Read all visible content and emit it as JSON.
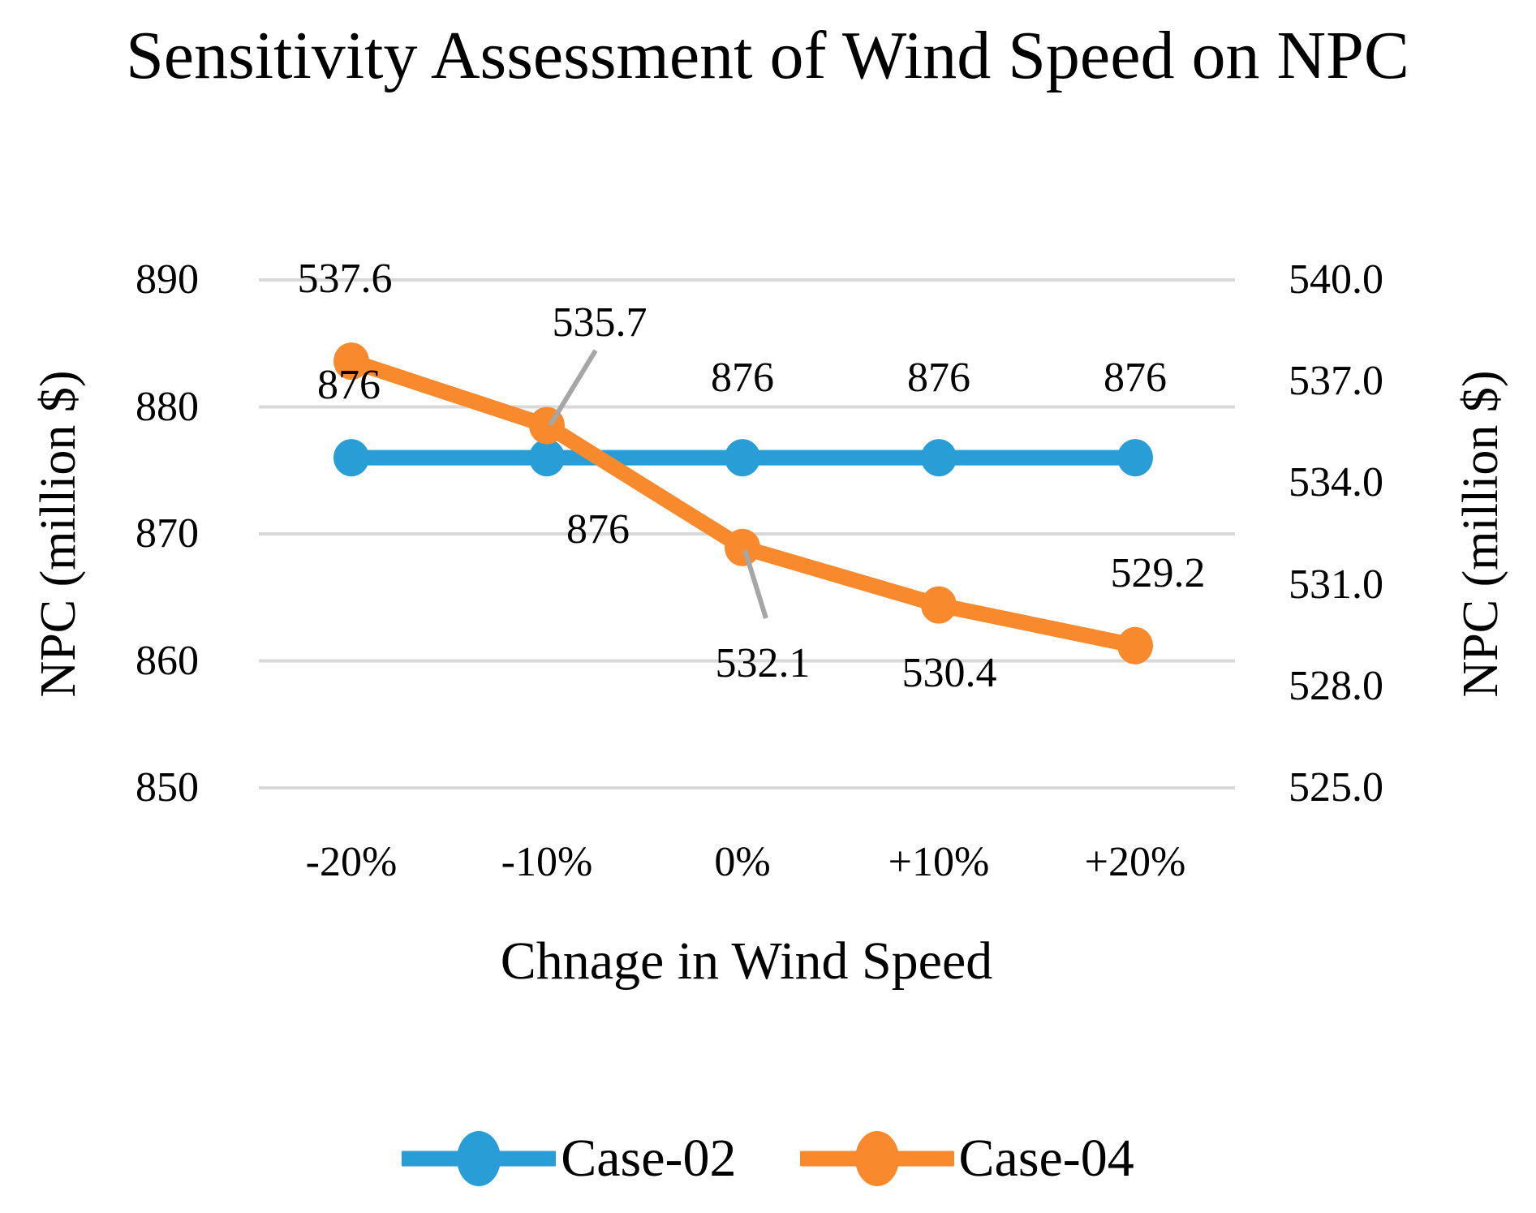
{
  "chart_data": {
    "type": "line",
    "title": "Sensitivity Assessment of Wind Speed on NPC",
    "categories": [
      "-20%",
      "-10%",
      "0%",
      "+10%",
      "+20%"
    ],
    "series": [
      {
        "name": "Case-02",
        "color": "#299ED6",
        "axis": "left",
        "values": [
          876,
          876,
          876,
          876,
          876
        ],
        "labels": [
          "876",
          "876",
          "876",
          "876",
          "876"
        ]
      },
      {
        "name": "Case-04",
        "color": "#F8892D",
        "axis": "right",
        "values": [
          537.6,
          535.7,
          532.1,
          530.4,
          529.2
        ],
        "labels": [
          "537.6",
          "535.7",
          "532.1",
          "530.4",
          "529.2"
        ]
      }
    ],
    "left_axis": {
      "title": "NPC (million $)",
      "ticks": [
        "890",
        "880",
        "870",
        "860",
        "850"
      ],
      "range": [
        850,
        890
      ]
    },
    "right_axis": {
      "title": "NPC (million $)",
      "ticks": [
        "540.0",
        "537.0",
        "534.0",
        "531.0",
        "528.0",
        "525.0"
      ],
      "range": [
        525,
        540
      ]
    },
    "x_axis": {
      "title": "Chnage in Wind Speed"
    },
    "grid": "on",
    "legend_position": "bottom",
    "gridline_color": "#D9D9D9",
    "leader_line_color": "#A6A6A6",
    "background_color": "#FFFFFF"
  }
}
